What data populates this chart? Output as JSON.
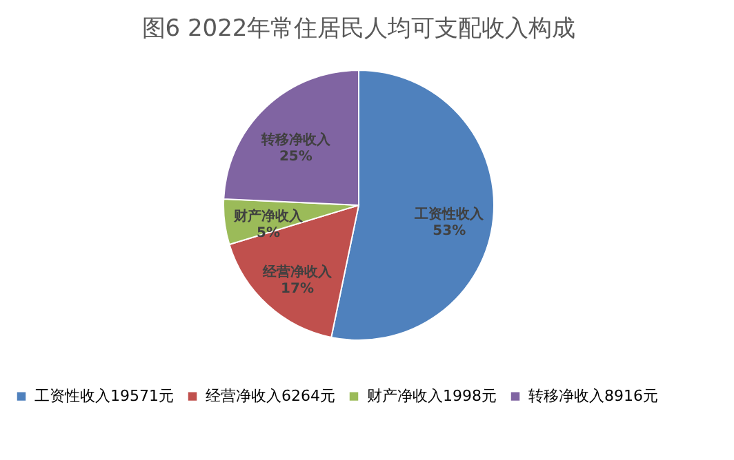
{
  "chart_data": {
    "type": "pie",
    "title": "图6   2022年常住居民人均可支配收入构成",
    "categories": [
      "工资性收入19571元",
      "经营净收入6264元",
      "财产净收入1998元",
      "转移净收入8916元"
    ],
    "values": [
      19571,
      6264,
      1998,
      8916
    ],
    "colors": [
      "#4f81bd",
      "#c0504d",
      "#9bbb59",
      "#8064a2"
    ],
    "value_labels": [
      "工资性收入\n53%",
      "经营净收入\n17%",
      "财产净收入\n5%",
      "转移净收入\n25%"
    ],
    "legend": "bottom"
  }
}
